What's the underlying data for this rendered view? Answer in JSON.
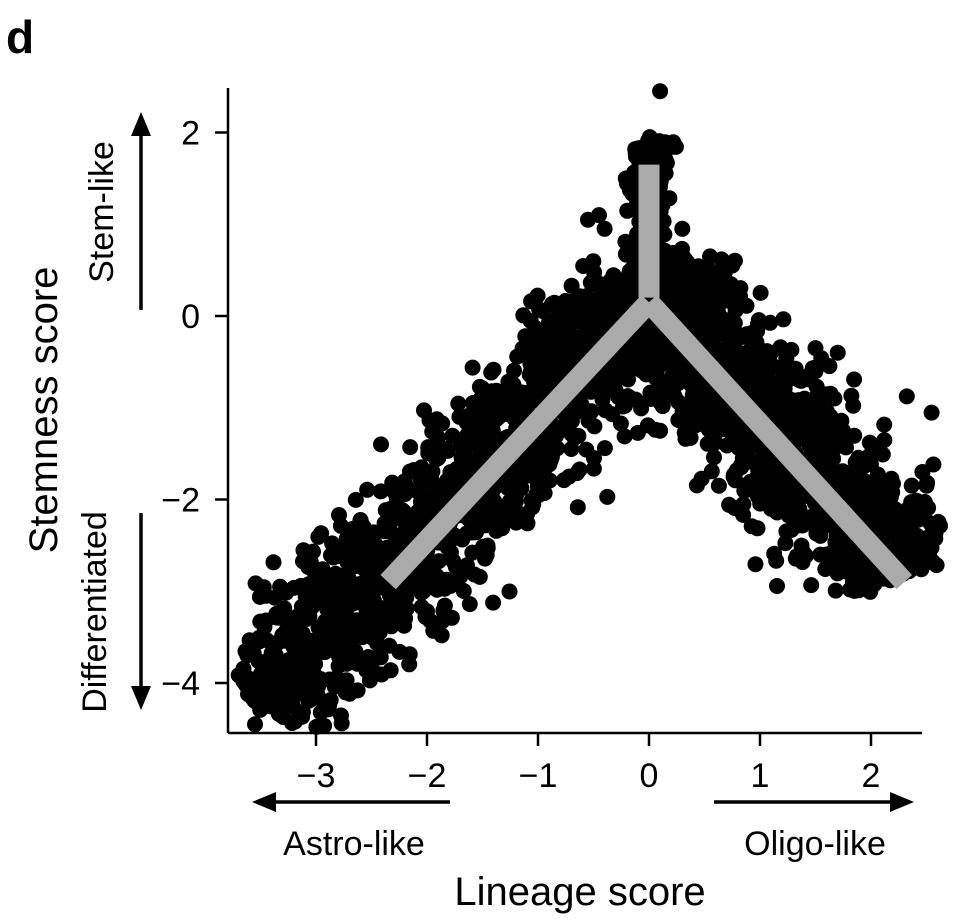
{
  "panel_label": "d",
  "chart_data": {
    "type": "scatter",
    "xlabel": "Lineage score",
    "ylabel": "Stemness score",
    "xlim": [
      -3.8,
      2.5
    ],
    "ylim": [
      -4.55,
      2.45
    ],
    "xticks": [
      -3,
      -2,
      -1,
      0,
      1,
      2
    ],
    "xtick_labels": [
      "−3",
      "−2",
      "−1",
      "0",
      "1",
      "2"
    ],
    "yticks": [
      -4,
      -2,
      0,
      2
    ],
    "ytick_labels": [
      "−4",
      "−2",
      "0",
      "2"
    ],
    "grid": false,
    "point_color": "#000000",
    "trajectory_color": "#aaaaaa",
    "annotations": {
      "x_left": "Astro-like",
      "x_right": "Oligo-like",
      "y_top": "Stem-like",
      "y_bottom": "Differentiated"
    },
    "trajectory": [
      {
        "name": "astro-branch",
        "points": [
          [
            -2.35,
            -2.9
          ],
          [
            0,
            0.15
          ]
        ]
      },
      {
        "name": "oligo-branch",
        "points": [
          [
            0,
            0.15
          ],
          [
            2.3,
            -2.9
          ]
        ]
      },
      {
        "name": "stem-branch",
        "points": [
          [
            0,
            0.2
          ],
          [
            0,
            1.65
          ]
        ]
      }
    ],
    "cloud": [
      {
        "x": [
          -3.5,
          0
        ],
        "y": [
          -4.25,
          0.25
        ],
        "spread": 0.32,
        "count": 1300
      },
      {
        "x": [
          0,
          2.3
        ],
        "y": [
          0.25,
          -2.8
        ],
        "spread": 0.33,
        "count": 1100
      },
      {
        "x": [
          -0.02,
          0.02
        ],
        "y": [
          0.0,
          1.9
        ],
        "spread": 0.08,
        "count": 350
      },
      {
        "x": [
          -0.35,
          0.35
        ],
        "y": [
          -0.4,
          0.6
        ],
        "spread": 0.2,
        "count": 500
      }
    ],
    "outliers": [
      [
        0.1,
        2.45
      ],
      [
        -0.45,
        1.1
      ],
      [
        0.55,
        0.65
      ],
      [
        0.75,
        0.55
      ],
      [
        1.1,
        -0.4
      ],
      [
        1.5,
        -0.35
      ],
      [
        1.7,
        -0.4
      ],
      [
        2.5,
        -1.85
      ],
      [
        2.35,
        -2.15
      ],
      [
        0.63,
        -1.85
      ],
      [
        0.85,
        -2.05
      ],
      [
        1.1,
        -2.1
      ],
      [
        1.4,
        -2.2
      ],
      [
        1.6,
        -2.6
      ],
      [
        2.1,
        -2.3
      ],
      [
        0.1,
        -1.25
      ],
      [
        -0.7,
        -1.45
      ],
      [
        -0.72,
        -1.75
      ],
      [
        -1.78,
        -1.8
      ],
      [
        -2.05,
        -1.65
      ],
      [
        -1.9,
        -1.55
      ],
      [
        -2.2,
        -1.8
      ],
      [
        -3.45,
        -3.05
      ],
      [
        -3.55,
        -4.45
      ],
      [
        -3.3,
        -4.35
      ],
      [
        -3.5,
        -3.95
      ],
      [
        -3.25,
        -3.75
      ],
      [
        -0.55,
        1.05
      ],
      [
        -0.4,
        0.95
      ],
      [
        0.3,
        0.95
      ],
      [
        -0.8,
        -0.6
      ],
      [
        -1.2,
        -1.0
      ],
      [
        1.3,
        -1.7
      ],
      [
        1.9,
        -1.95
      ],
      [
        -2.55,
        -2.6
      ]
    ]
  }
}
